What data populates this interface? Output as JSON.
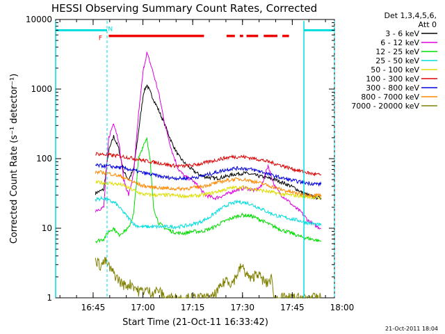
{
  "chart_data": {
    "type": "line",
    "title": "HESSI Observing Summary Count Rates, Corrected",
    "xlabel": "Start Time (21-Oct-11 16:33:42)",
    "ylabel": "Corrected Count Rate (s⁻¹ detector⁻¹)",
    "x_unit": "minutes after 16:33:42",
    "xlim": [
      0,
      84
    ],
    "ylim": [
      1,
      10000
    ],
    "yscale": "log",
    "x_ticks": [
      {
        "x": 11.3,
        "label": "16:45"
      },
      {
        "x": 26.3,
        "label": "17:00"
      },
      {
        "x": 41.3,
        "label": "17:15"
      },
      {
        "x": 56.3,
        "label": "17:30"
      },
      {
        "x": 71.3,
        "label": "17:45"
      },
      {
        "x": 86.3,
        "label": "18:00"
      }
    ],
    "y_ticks": [
      {
        "y": 1,
        "label": "1"
      },
      {
        "y": 10,
        "label": "10"
      },
      {
        "y": 100,
        "label": "100"
      },
      {
        "y": 1000,
        "label": "1000"
      },
      {
        "y": 10000,
        "label": "10000"
      }
    ],
    "legend": {
      "header": [
        "Det 1,3,4,5,6,",
        "Att 0"
      ],
      "placement": "right"
    },
    "series": [
      {
        "name": "3 - 6 keV",
        "color": "#000000",
        "points": [
          [
            12,
            32
          ],
          [
            14.5,
            36
          ],
          [
            16,
            130
          ],
          [
            17.5,
            210
          ],
          [
            19,
            140
          ],
          [
            20.5,
            65
          ],
          [
            22,
            50
          ],
          [
            23.5,
            70
          ],
          [
            25,
            250
          ],
          [
            26.5,
            900
          ],
          [
            27.5,
            1150
          ],
          [
            29,
            800
          ],
          [
            31,
            500
          ],
          [
            33,
            300
          ],
          [
            35,
            170
          ],
          [
            37,
            110
          ],
          [
            39,
            85
          ],
          [
            41,
            70
          ],
          [
            43,
            60
          ],
          [
            45,
            55
          ],
          [
            48,
            52
          ],
          [
            51,
            55
          ],
          [
            54,
            60
          ],
          [
            57,
            62
          ],
          [
            60,
            58
          ],
          [
            63,
            54
          ],
          [
            66,
            50
          ],
          [
            68,
            46
          ],
          [
            70,
            42
          ],
          [
            72,
            38
          ],
          [
            74,
            33
          ],
          [
            76,
            30
          ],
          [
            78,
            28
          ],
          [
            80,
            27
          ]
        ]
      },
      {
        "name": "6 - 12 keV",
        "color": "#dd00dd",
        "points": [
          [
            12,
            18
          ],
          [
            14.5,
            20
          ],
          [
            16,
            200
          ],
          [
            17.5,
            330
          ],
          [
            19,
            180
          ],
          [
            20.5,
            50
          ],
          [
            22,
            30
          ],
          [
            23.5,
            60
          ],
          [
            25,
            450
          ],
          [
            26.5,
            2000
          ],
          [
            27.5,
            3300
          ],
          [
            29,
            2000
          ],
          [
            31,
            900
          ],
          [
            33,
            300
          ],
          [
            35,
            130
          ],
          [
            37,
            70
          ],
          [
            39,
            55
          ],
          [
            41,
            50
          ],
          [
            43,
            40
          ],
          [
            45,
            30
          ],
          [
            48,
            27
          ],
          [
            51,
            30
          ],
          [
            54,
            35
          ],
          [
            57,
            38
          ],
          [
            60,
            35
          ],
          [
            62,
            40
          ],
          [
            64,
            80
          ],
          [
            66,
            40
          ],
          [
            68,
            30
          ],
          [
            70,
            25
          ],
          [
            72,
            20
          ],
          [
            74,
            17
          ],
          [
            76,
            13
          ],
          [
            78,
            11
          ],
          [
            80,
            10
          ]
        ]
      },
      {
        "name": "12 - 25 keV",
        "color": "#00dd00",
        "points": [
          [
            12,
            6.5
          ],
          [
            14.5,
            7
          ],
          [
            16,
            9
          ],
          [
            17.5,
            10
          ],
          [
            19,
            8
          ],
          [
            20.5,
            9
          ],
          [
            22,
            10
          ],
          [
            23.5,
            16
          ],
          [
            25,
            100
          ],
          [
            26.5,
            160
          ],
          [
            27.5,
            200
          ],
          [
            28.5,
            90
          ],
          [
            29.5,
            20
          ],
          [
            31,
            12
          ],
          [
            33,
            10
          ],
          [
            35,
            9
          ],
          [
            37,
            8.5
          ],
          [
            39,
            8.5
          ],
          [
            41,
            9
          ],
          [
            44,
            9
          ],
          [
            47,
            10
          ],
          [
            50,
            12
          ],
          [
            53,
            14
          ],
          [
            56,
            15.5
          ],
          [
            59,
            15
          ],
          [
            62,
            13
          ],
          [
            65,
            11
          ],
          [
            68,
            9.5
          ],
          [
            71,
            8.5
          ],
          [
            74,
            7.5
          ],
          [
            77,
            7
          ],
          [
            80,
            6.5
          ]
        ]
      },
      {
        "name": "25 - 50 keV",
        "color": "#00dddd",
        "points": [
          [
            12,
            26
          ],
          [
            14.5,
            27
          ],
          [
            16,
            25
          ],
          [
            18,
            23
          ],
          [
            20,
            18
          ],
          [
            22,
            14
          ],
          [
            24,
            11
          ],
          [
            26,
            10.5
          ],
          [
            28,
            10.5
          ],
          [
            31,
            10.5
          ],
          [
            34,
            10.5
          ],
          [
            37,
            10.5
          ],
          [
            40,
            11
          ],
          [
            43,
            12
          ],
          [
            46,
            14
          ],
          [
            49,
            18
          ],
          [
            52,
            22
          ],
          [
            55,
            24
          ],
          [
            58,
            23
          ],
          [
            61,
            20
          ],
          [
            64,
            17
          ],
          [
            67,
            15
          ],
          [
            70,
            14
          ],
          [
            73,
            13
          ],
          [
            76,
            12
          ],
          [
            80,
            11
          ]
        ]
      },
      {
        "name": "50 - 100 keV",
        "color": "#dddd00",
        "points": [
          [
            12,
            46
          ],
          [
            14.5,
            45
          ],
          [
            17,
            44
          ],
          [
            20,
            42
          ],
          [
            23,
            36
          ],
          [
            26,
            31
          ],
          [
            29,
            30
          ],
          [
            32,
            30
          ],
          [
            35,
            30
          ],
          [
            38,
            29
          ],
          [
            41,
            29
          ],
          [
            44,
            30
          ],
          [
            47,
            32
          ],
          [
            50,
            35
          ],
          [
            53,
            38
          ],
          [
            56,
            39
          ],
          [
            59,
            37
          ],
          [
            62,
            35
          ],
          [
            65,
            33
          ],
          [
            68,
            31
          ],
          [
            71,
            30
          ],
          [
            74,
            29
          ],
          [
            77,
            28
          ],
          [
            80,
            27
          ]
        ]
      },
      {
        "name": "100 - 300 keV",
        "color": "#dd0000",
        "points": [
          [
            12,
            118
          ],
          [
            14.5,
            115
          ],
          [
            17,
            112
          ],
          [
            20,
            108
          ],
          [
            23,
            102
          ],
          [
            26,
            95
          ],
          [
            29,
            90
          ],
          [
            32,
            85
          ],
          [
            35,
            80
          ],
          [
            38,
            78
          ],
          [
            41,
            80
          ],
          [
            44,
            85
          ],
          [
            47,
            92
          ],
          [
            50,
            100
          ],
          [
            53,
            106
          ],
          [
            56,
            107
          ],
          [
            59,
            102
          ],
          [
            62,
            96
          ],
          [
            65,
            88
          ],
          [
            68,
            80
          ],
          [
            71,
            72
          ],
          [
            74,
            66
          ],
          [
            77,
            61
          ],
          [
            80,
            58
          ]
        ]
      },
      {
        "name": "300 - 800 keV",
        "color": "#0000dd",
        "points": [
          [
            12,
            80
          ],
          [
            14.5,
            79
          ],
          [
            17,
            77
          ],
          [
            20,
            74
          ],
          [
            23,
            69
          ],
          [
            26,
            63
          ],
          [
            29,
            59
          ],
          [
            32,
            55
          ],
          [
            35,
            53
          ],
          [
            38,
            52
          ],
          [
            41,
            53
          ],
          [
            44,
            56
          ],
          [
            47,
            61
          ],
          [
            50,
            67
          ],
          [
            53,
            72
          ],
          [
            56,
            73
          ],
          [
            59,
            70
          ],
          [
            62,
            65
          ],
          [
            65,
            58
          ],
          [
            68,
            53
          ],
          [
            71,
            49
          ],
          [
            74,
            46
          ],
          [
            77,
            44
          ],
          [
            80,
            43
          ]
        ]
      },
      {
        "name": "800 - 7000 keV",
        "color": "#ff8800",
        "points": [
          [
            12,
            64
          ],
          [
            14.5,
            63
          ],
          [
            17,
            60
          ],
          [
            20,
            55
          ],
          [
            23,
            47
          ],
          [
            26,
            41
          ],
          [
            29,
            39
          ],
          [
            32,
            38
          ],
          [
            35,
            37
          ],
          [
            38,
            37
          ],
          [
            41,
            38
          ],
          [
            44,
            40
          ],
          [
            47,
            43
          ],
          [
            50,
            47
          ],
          [
            53,
            50
          ],
          [
            56,
            51
          ],
          [
            59,
            48
          ],
          [
            62,
            44
          ],
          [
            65,
            40
          ],
          [
            68,
            36
          ],
          [
            71,
            33
          ],
          [
            74,
            31
          ],
          [
            77,
            30
          ],
          [
            80,
            30
          ]
        ]
      },
      {
        "name": "7000 - 20000 keV",
        "color": "#808000",
        "points": [
          [
            12,
            3.6
          ],
          [
            13.5,
            2.9
          ],
          [
            15,
            3.4
          ],
          [
            16.5,
            2.6
          ],
          [
            18,
            2.1
          ],
          [
            19.5,
            1.7
          ],
          [
            21,
            1.5
          ],
          [
            23,
            1.6
          ],
          [
            25,
            1.25
          ],
          [
            27,
            1.3
          ],
          [
            29,
            1.2
          ],
          [
            31,
            1.3
          ],
          [
            33,
            1.0
          ],
          [
            37,
            1.0
          ],
          [
            41,
            1.0
          ],
          [
            45,
            1.0
          ],
          [
            47,
            1.0
          ],
          [
            48.5,
            1.2
          ],
          [
            50,
            1.5
          ],
          [
            51.5,
            1.9
          ],
          [
            53,
            1.6
          ],
          [
            54.5,
            2.1
          ],
          [
            56,
            2.9
          ],
          [
            57.5,
            2.2
          ],
          [
            59,
            1.8
          ],
          [
            60.5,
            2.4
          ],
          [
            62,
            1.9
          ],
          [
            63.5,
            1.6
          ],
          [
            65,
            1.9
          ],
          [
            66,
            1.0
          ],
          [
            70,
            1.0
          ],
          [
            74,
            1.0
          ],
          [
            80,
            1.0
          ]
        ]
      }
    ],
    "annotations": {
      "attenuator_bar": {
        "color": "#00dddd",
        "level": 7000,
        "segments": [
          [
            0,
            15.5
          ],
          [
            74.8,
            84
          ]
        ]
      },
      "attenuator_lines_x": [
        0,
        15.5,
        74.8,
        84
      ],
      "night_line_x": [
        15.5,
        84
      ],
      "flare_label": "F",
      "night_label": "N",
      "flare_label_x": 13.5,
      "night_label_x": 16.5,
      "flare_bar": {
        "color": "#ee0000",
        "level": 5800,
        "segments": [
          [
            16,
            44.7
          ],
          [
            51.5,
            54
          ],
          [
            55.5,
            56.5
          ],
          [
            57.5,
            61
          ],
          [
            62.7,
            66.8
          ],
          [
            68.3,
            70.3
          ]
        ]
      }
    }
  },
  "footer_timestamp": "21-Oct-2011 18:04"
}
